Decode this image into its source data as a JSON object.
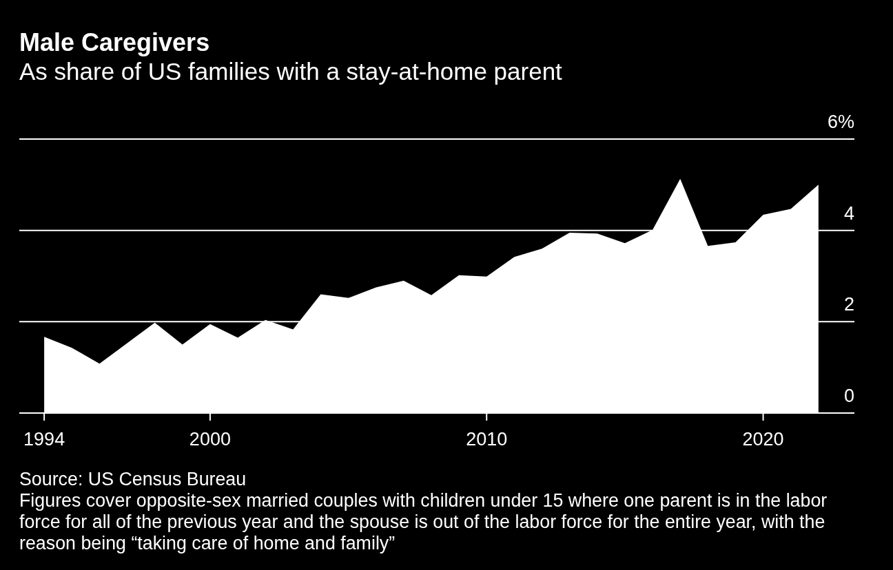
{
  "chart_data": {
    "type": "area",
    "title": "Male Caregivers",
    "subtitle": "As share of US families with a stay-at-home parent",
    "x": [
      1994,
      1995,
      1996,
      1997,
      1998,
      1999,
      2000,
      2001,
      2002,
      2003,
      2004,
      2005,
      2006,
      2007,
      2008,
      2009,
      2010,
      2011,
      2012,
      2013,
      2014,
      2015,
      2016,
      2017,
      2018,
      2019,
      2020,
      2021,
      2022
    ],
    "values": [
      1.67,
      1.43,
      1.08,
      1.53,
      1.98,
      1.5,
      1.95,
      1.65,
      2.04,
      1.83,
      2.6,
      2.52,
      2.75,
      2.9,
      2.58,
      3.02,
      2.99,
      3.42,
      3.6,
      3.95,
      3.93,
      3.72,
      4.01,
      5.13,
      3.66,
      3.74,
      4.34,
      4.47,
      5.0
    ],
    "color": "#ffffff",
    "xlim": [
      1993.1,
      2023.3
    ],
    "xticks": [
      1994,
      2000,
      2010,
      2020
    ],
    "ylim": [
      0,
      6
    ],
    "yticks": [
      0,
      2,
      4,
      {
        "value": 6,
        "label": "6%"
      }
    ],
    "grid": "y",
    "annotations": [
      "Source: US Census Bureau",
      "Figures cover opposite-sex married couples with children under 15 where one parent is in the labor force for all of the previous year and the spouse is out of the labor force for the entire year, with the reason being “taking care of home and family”"
    ]
  }
}
